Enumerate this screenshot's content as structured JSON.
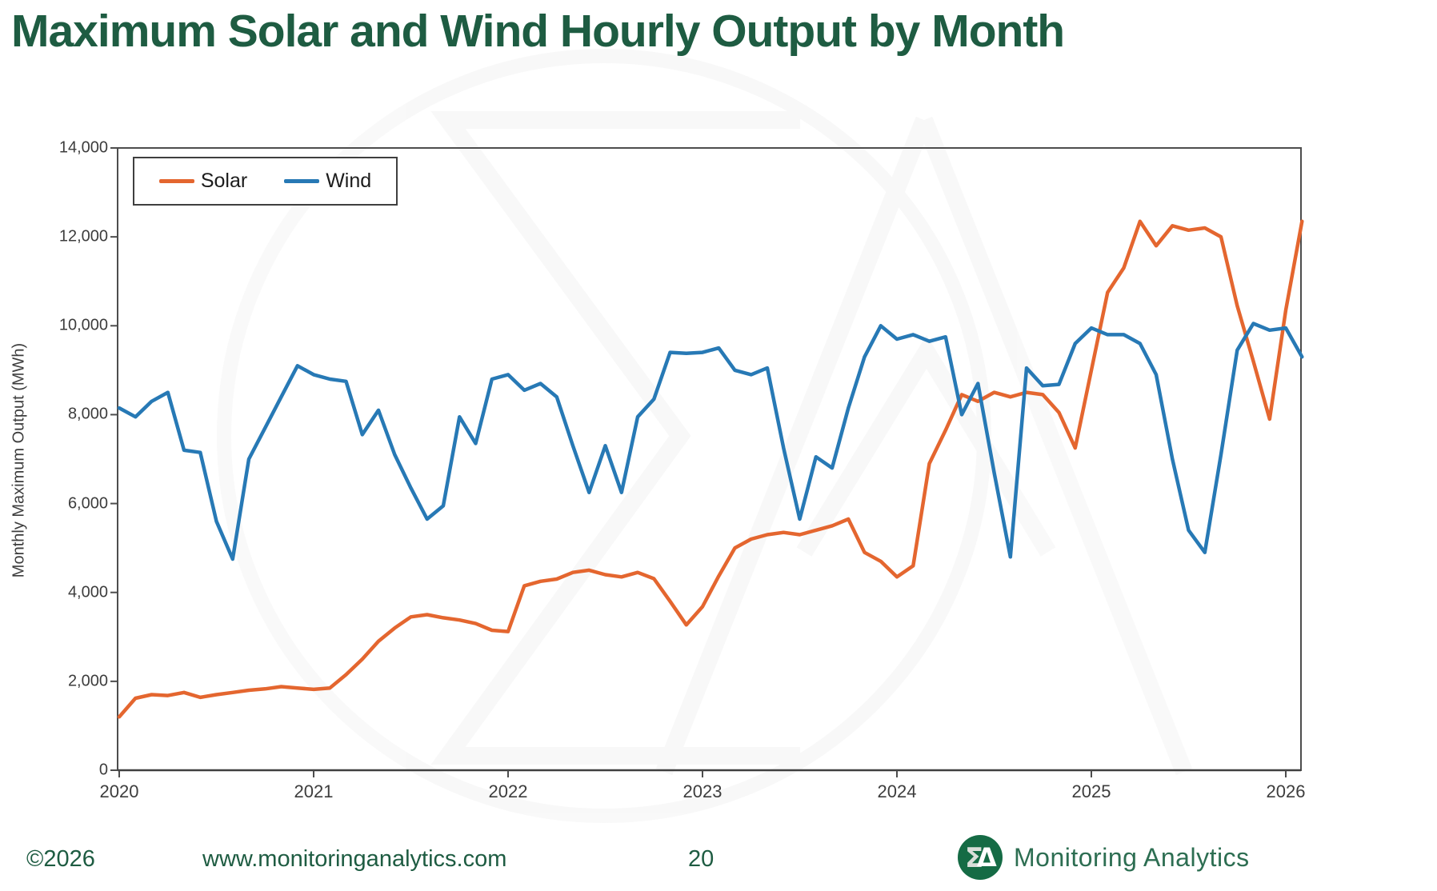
{
  "title": "Maximum Solar and Wind Hourly Output by Month",
  "legend": {
    "solar_label": "Solar",
    "wind_label": "Wind"
  },
  "y_axis": {
    "label": "Monthly Maximum Output (MWh)",
    "ticks": [
      "14,000",
      "12,000",
      "10,000",
      "8,000",
      "6,000",
      "4,000",
      "2,000",
      "0"
    ]
  },
  "x_axis": {
    "ticks": [
      "2020",
      "2021",
      "2022",
      "2023",
      "2024",
      "2025",
      "2026"
    ]
  },
  "footer": {
    "copyright": "©2026",
    "url": "www.monitoringanalytics.com",
    "page_number": "20",
    "brand_name": "Monitoring Analytics",
    "brand_logo_icon": "sigma-delta-circle-icon"
  },
  "colors": {
    "solar": "#E4662F",
    "wind": "#2779B5",
    "title_green": "#1E5C42",
    "brand_green": "#2D6E52",
    "logo_green": "#156B45",
    "axis_gray": "#4D4D4D",
    "watermark_gray": "#8A8A8A"
  },
  "chart_data": {
    "type": "line",
    "title": "Maximum Solar and Wind Hourly Output by Month",
    "xlabel": "",
    "ylabel": "Monthly Maximum Output (MWh)",
    "ylim": [
      0,
      14000
    ],
    "y_tick_step": 2000,
    "x_start_month": "2020-01",
    "x_end_month": "2026-02",
    "x_tick_years": [
      2020,
      2021,
      2022,
      2023,
      2024,
      2025,
      2026
    ],
    "grid": false,
    "legend_position": "top-left-inside",
    "series": [
      {
        "name": "Solar",
        "color_key": "solar",
        "values": [
          1200,
          1620,
          1700,
          1680,
          1750,
          1640,
          1700,
          1750,
          1800,
          1830,
          1880,
          1850,
          1820,
          1850,
          2150,
          2500,
          2900,
          3200,
          3450,
          3500,
          3430,
          3380,
          3300,
          3150,
          3120,
          4150,
          4250,
          4300,
          4450,
          4500,
          4400,
          4350,
          4450,
          4310,
          3800,
          3270,
          3680,
          4370,
          5000,
          5200,
          5300,
          5350,
          5300,
          5400,
          5500,
          5650,
          4900,
          4700,
          4350,
          4600,
          6900,
          7650,
          8450,
          8300,
          8500,
          8400,
          8500,
          8450,
          8050,
          7250,
          9000,
          10750,
          11300,
          12350,
          11800,
          12250,
          12150,
          12200,
          12000,
          10450,
          9200,
          7900,
          10350,
          12350
        ]
      },
      {
        "name": "Wind",
        "color_key": "wind",
        "values": [
          8150,
          7950,
          8300,
          8500,
          7200,
          7150,
          5600,
          4750,
          7000,
          7700,
          8400,
          9100,
          8900,
          8800,
          8750,
          7550,
          8100,
          7100,
          6350,
          5650,
          5950,
          7950,
          7350,
          8800,
          8900,
          8550,
          8700,
          8400,
          7300,
          6250,
          7300,
          6250,
          7950,
          8350,
          9400,
          9380,
          9400,
          9500,
          9000,
          8900,
          9050,
          7250,
          5650,
          7050,
          6800,
          8150,
          9300,
          10000,
          9700,
          9800,
          9650,
          9750,
          8000,
          8700,
          6700,
          4800,
          9050,
          8650,
          8680,
          9600,
          9950,
          9800,
          9800,
          9600,
          8900,
          7000,
          5400,
          4900,
          7100,
          9450,
          10050,
          9900,
          9950,
          9300
        ]
      }
    ]
  }
}
